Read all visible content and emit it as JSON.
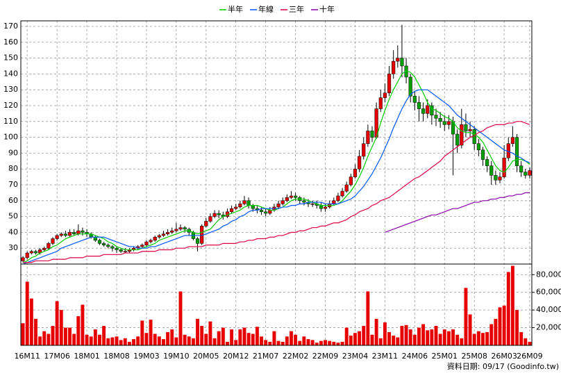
{
  "chart_data": {
    "type": "candlestick",
    "source": "資料日期: 09/17 (Goodinfo.tw)",
    "categories": [
      null,
      "16M11",
      null,
      null,
      null,
      null,
      null,
      null,
      "17M06",
      null,
      null,
      null,
      null,
      null,
      null,
      "18M01",
      null,
      null,
      null,
      null,
      null,
      null,
      "18M08",
      null,
      null,
      null,
      null,
      null,
      null,
      "19M03",
      null,
      null,
      null,
      null,
      null,
      null,
      "19M10",
      null,
      null,
      null,
      null,
      null,
      null,
      "20M05",
      null,
      null,
      null,
      null,
      null,
      null,
      "20M12",
      null,
      null,
      null,
      null,
      null,
      null,
      "21M07",
      null,
      null,
      null,
      null,
      null,
      null,
      "22M02",
      null,
      null,
      null,
      null,
      null,
      null,
      "22M09",
      null,
      null,
      null,
      null,
      null,
      null,
      "23M04",
      null,
      null,
      null,
      null,
      null,
      null,
      "23M11",
      null,
      null,
      null,
      null,
      null,
      null,
      "24M06",
      null,
      null,
      null,
      null,
      null,
      null,
      "25M01",
      null,
      null,
      null,
      null,
      null,
      null,
      "25M08",
      null,
      null,
      null,
      null,
      null,
      null,
      "26M03",
      null,
      null,
      null,
      null,
      null,
      "26M09"
    ],
    "open": [
      22,
      24,
      27,
      28,
      27,
      29,
      30,
      33,
      36,
      38,
      39,
      38,
      40,
      39,
      41,
      40,
      39,
      37,
      35,
      33,
      32,
      31,
      30,
      29,
      28,
      28,
      29,
      30,
      31,
      32,
      34,
      35,
      37,
      38,
      39,
      40,
      41,
      42,
      43,
      42,
      40,
      36,
      33,
      44,
      47,
      50,
      52,
      51,
      50,
      53,
      55,
      56,
      58,
      60,
      57,
      55,
      54,
      53,
      52,
      54,
      56,
      58,
      60,
      62,
      63,
      62,
      60,
      59,
      58,
      58,
      57,
      55,
      56,
      58,
      60,
      63,
      66,
      70,
      75,
      80,
      88,
      96,
      104,
      100,
      118,
      125,
      128,
      140,
      148,
      150,
      145,
      138,
      126,
      122,
      118,
      115,
      120,
      114,
      112,
      110,
      108,
      110,
      102,
      95,
      108,
      104,
      105,
      96,
      92,
      86,
      82,
      76,
      73,
      75,
      87,
      96,
      100,
      82,
      78,
      76
    ],
    "high": [
      25,
      28,
      29,
      29,
      30,
      31,
      34,
      37,
      39,
      40,
      41,
      42,
      42,
      45,
      43,
      42,
      40,
      38,
      36,
      34,
      33,
      32,
      31,
      30,
      30,
      30,
      31,
      32,
      33,
      35,
      36,
      38,
      39,
      41,
      42,
      43,
      46,
      45,
      44,
      43,
      41,
      37,
      45,
      49,
      52,
      54,
      54,
      53,
      55,
      57,
      58,
      60,
      63,
      62,
      58,
      57,
      56,
      55,
      56,
      58,
      60,
      62,
      64,
      66,
      65,
      63,
      62,
      61,
      60,
      60,
      59,
      58,
      60,
      62,
      65,
      68,
      72,
      77,
      83,
      92,
      100,
      108,
      107,
      122,
      130,
      134,
      145,
      155,
      158,
      171,
      150,
      140,
      129,
      126,
      122,
      124,
      122,
      118,
      116,
      114,
      114,
      113,
      105,
      118,
      115,
      110,
      107,
      99,
      94,
      88,
      85,
      79,
      78,
      95,
      100,
      107,
      102,
      85,
      80,
      81
    ],
    "low": [
      21,
      23,
      26,
      26,
      26,
      28,
      29,
      32,
      35,
      37,
      37,
      37,
      38,
      38,
      38,
      37,
      36,
      34,
      32,
      31,
      30,
      28,
      27,
      27,
      27,
      27,
      28,
      29,
      30,
      31,
      33,
      34,
      36,
      37,
      38,
      39,
      40,
      41,
      40,
      38,
      35,
      28,
      32,
      43,
      46,
      49,
      49,
      48,
      49,
      52,
      54,
      55,
      57,
      55,
      53,
      52,
      51,
      50,
      51,
      53,
      55,
      57,
      59,
      61,
      60,
      58,
      57,
      56,
      56,
      55,
      53,
      53,
      55,
      57,
      59,
      62,
      65,
      69,
      74,
      78,
      86,
      94,
      97,
      99,
      116,
      122,
      126,
      137,
      144,
      138,
      134,
      122,
      117,
      110,
      110,
      112,
      108,
      107,
      106,
      104,
      105,
      76,
      90,
      93,
      100,
      100,
      92,
      88,
      82,
      78,
      70,
      70,
      71,
      74,
      85,
      94,
      78,
      75,
      74,
      74
    ],
    "close": [
      24,
      27,
      28,
      27,
      29,
      30,
      33,
      36,
      38,
      39,
      38,
      40,
      39,
      41,
      40,
      39,
      37,
      35,
      33,
      32,
      31,
      30,
      29,
      28,
      28,
      29,
      30,
      31,
      32,
      34,
      35,
      37,
      38,
      39,
      40,
      41,
      42,
      43,
      42,
      40,
      36,
      33,
      44,
      47,
      50,
      52,
      51,
      50,
      53,
      55,
      56,
      58,
      60,
      57,
      55,
      54,
      53,
      52,
      54,
      56,
      58,
      60,
      62,
      63,
      62,
      60,
      59,
      58,
      58,
      57,
      55,
      56,
      58,
      60,
      63,
      66,
      70,
      75,
      80,
      88,
      96,
      104,
      100,
      118,
      125,
      128,
      140,
      148,
      150,
      145,
      138,
      126,
      122,
      118,
      115,
      120,
      114,
      112,
      110,
      108,
      110,
      102,
      95,
      108,
      104,
      105,
      96,
      92,
      86,
      82,
      76,
      73,
      75,
      87,
      96,
      100,
      82,
      78,
      76,
      79
    ],
    "volume": [
      25000,
      72000,
      53000,
      30000,
      10000,
      16000,
      13000,
      22000,
      50000,
      40000,
      20000,
      20000,
      13000,
      33000,
      46000,
      12000,
      10000,
      18000,
      12000,
      22000,
      8000,
      9000,
      10000,
      6000,
      8000,
      4000,
      7000,
      10000,
      28000,
      14000,
      29000,
      13000,
      10000,
      7000,
      15000,
      18000,
      9000,
      61000,
      12000,
      10000,
      8000,
      30000,
      22000,
      13000,
      27000,
      8000,
      16000,
      20000,
      4000,
      18000,
      6000,
      18000,
      20000,
      14000,
      13000,
      21000,
      10000,
      6000,
      4000,
      16000,
      5000,
      4000,
      10000,
      16000,
      12000,
      5000,
      10000,
      7000,
      6000,
      3000,
      5000,
      6000,
      5000,
      4000,
      3000,
      4000,
      20000,
      11000,
      14000,
      16000,
      22000,
      61000,
      12000,
      30000,
      8000,
      26000,
      15000,
      11000,
      9000,
      22000,
      23000,
      18000,
      12000,
      20000,
      24000,
      17000,
      18000,
      22000,
      13000,
      18000,
      16000,
      18000,
      12000,
      8000,
      65000,
      35000,
      13000,
      16000,
      14000,
      15000,
      24000,
      30000,
      43000,
      45000,
      83000,
      90000,
      40000,
      15000,
      8000,
      4000
    ],
    "up_color": "#e60000",
    "down_color": "#00a000",
    "volume_color": "#e60000",
    "series": [
      {
        "name": "半年",
        "color": "#00cc00",
        "values": [
          21,
          22,
          24,
          25,
          27,
          28,
          29,
          31,
          32,
          34,
          36,
          37,
          38,
          39,
          39,
          39,
          39,
          38,
          37,
          36,
          34,
          33,
          31,
          30,
          29,
          29,
          29,
          29,
          30,
          31,
          32,
          33,
          35,
          36,
          37,
          38,
          39,
          40,
          41,
          41,
          40,
          39,
          40,
          41,
          42,
          45,
          48,
          50,
          51,
          52,
          53,
          54,
          56,
          57,
          57,
          57,
          56,
          55,
          54,
          54,
          55,
          56,
          58,
          60,
          61,
          61,
          61,
          60,
          59,
          58,
          57,
          57,
          57,
          57,
          58,
          60,
          63,
          66,
          70,
          75,
          81,
          88,
          94,
          100,
          109,
          117,
          124,
          130,
          135,
          140,
          142,
          141,
          138,
          133,
          128,
          122,
          118,
          117,
          115,
          113,
          112,
          110,
          106,
          104,
          103,
          103,
          102,
          100,
          97,
          92,
          87,
          82,
          79,
          78,
          81,
          85,
          86,
          86,
          85,
          83
        ]
      },
      {
        "name": "年線",
        "color": "#0055ff",
        "values": [
          20,
          21,
          22,
          23,
          24,
          25,
          26,
          27,
          28,
          30,
          31,
          32,
          33,
          34,
          35,
          36,
          37,
          37,
          37,
          37,
          36,
          35,
          34,
          33,
          32,
          31,
          31,
          30,
          30,
          30,
          31,
          31,
          32,
          33,
          34,
          35,
          36,
          37,
          38,
          38,
          38,
          38,
          38,
          39,
          40,
          41,
          42,
          44,
          45,
          47,
          48,
          50,
          51,
          53,
          54,
          54,
          55,
          55,
          55,
          55,
          55,
          56,
          56,
          57,
          57,
          58,
          58,
          59,
          59,
          59,
          59,
          58,
          58,
          58,
          58,
          59,
          60,
          61,
          63,
          66,
          69,
          73,
          77,
          82,
          87,
          93,
          99,
          106,
          112,
          118,
          123,
          127,
          129,
          130,
          130,
          130,
          128,
          126,
          124,
          122,
          120,
          117,
          114,
          112,
          110,
          108,
          106,
          104,
          102,
          100,
          98,
          96,
          94,
          92,
          91,
          90,
          88,
          87,
          85,
          84
        ]
      },
      {
        "name": "三年",
        "color": "#dd0044",
        "values": [
          21,
          21,
          21,
          22,
          22,
          22,
          22,
          23,
          23,
          23,
          23,
          24,
          24,
          24,
          24,
          25,
          25,
          25,
          25,
          26,
          26,
          26,
          26,
          26,
          27,
          27,
          27,
          27,
          28,
          28,
          28,
          28,
          29,
          29,
          29,
          29,
          30,
          30,
          30,
          31,
          31,
          31,
          31,
          32,
          32,
          32,
          32,
          33,
          33,
          33,
          33,
          34,
          34,
          35,
          35,
          36,
          36,
          36,
          37,
          37,
          38,
          38,
          39,
          40,
          40,
          41,
          41,
          42,
          43,
          43,
          44,
          44,
          45,
          46,
          46,
          47,
          48,
          50,
          51,
          53,
          54,
          55,
          57,
          58,
          60,
          61,
          62,
          64,
          66,
          68,
          70,
          72,
          74,
          75,
          77,
          79,
          81,
          83,
          85,
          88,
          90,
          92,
          94,
          96,
          98,
          100,
          101,
          103,
          104,
          106,
          107,
          108,
          108,
          108,
          109,
          109,
          110,
          110,
          109,
          108
        ]
      },
      {
        "name": "十年",
        "color": "#8800aa",
        "values": [
          null,
          null,
          null,
          null,
          null,
          null,
          null,
          null,
          null,
          null,
          null,
          null,
          null,
          null,
          null,
          null,
          null,
          null,
          null,
          null,
          null,
          null,
          null,
          null,
          null,
          null,
          null,
          null,
          null,
          null,
          null,
          null,
          null,
          null,
          null,
          null,
          null,
          null,
          null,
          null,
          null,
          null,
          null,
          null,
          null,
          null,
          null,
          null,
          null,
          null,
          null,
          null,
          null,
          null,
          null,
          null,
          null,
          null,
          null,
          null,
          null,
          null,
          null,
          null,
          null,
          null,
          null,
          null,
          null,
          null,
          null,
          null,
          null,
          null,
          null,
          null,
          null,
          null,
          null,
          null,
          null,
          null,
          null,
          null,
          null,
          40,
          41,
          42,
          43,
          44,
          45,
          46,
          47,
          48,
          49,
          50,
          51,
          51,
          52,
          53,
          54,
          55,
          55,
          56,
          57,
          58,
          59,
          59,
          60,
          60,
          61,
          61,
          62,
          62,
          63,
          63,
          64,
          64,
          65,
          65
        ]
      }
    ],
    "ylim": [
      20,
      173.5
    ],
    "yticks": [
      30,
      40,
      50,
      60,
      70,
      80,
      90,
      100,
      110,
      120,
      130,
      140,
      150,
      160,
      170
    ],
    "y2lim": [
      0,
      92000
    ],
    "y2ticks": [
      {
        "value": 20000,
        "label": "20,000"
      },
      {
        "value": 40000,
        "label": "40,000"
      },
      {
        "value": 60000,
        "label": "60,000"
      },
      {
        "value": 80000,
        "label": "80,000"
      }
    ],
    "grid": true
  }
}
